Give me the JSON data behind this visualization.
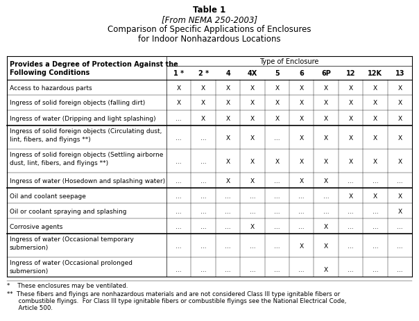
{
  "title_line1": "Table 1",
  "title_line2": "[From NEMA 250-2003]",
  "title_line3": "Comparison of Specific Applications of Enclosures",
  "title_line4": "for Indoor Nonhazardous Locations",
  "col_header_group": "Type of Enclosure",
  "col_headers": [
    "1 *",
    "2 *",
    "4",
    "4X",
    "5",
    "6",
    "6P",
    "12",
    "12K",
    "13"
  ],
  "row_header_label_line1": "Provides a Degree of Protection Against the",
  "row_header_label_line2": "Following Conditions",
  "rows": [
    {
      "label": "Access to hazardous parts",
      "label2": "",
      "values": [
        "X",
        "X",
        "X",
        "X",
        "X",
        "X",
        "X",
        "X",
        "X",
        "X"
      ],
      "group": 0,
      "tall": false
    },
    {
      "label": "Ingress of solid foreign objects (falling dirt)",
      "label2": "",
      "values": [
        "X",
        "X",
        "X",
        "X",
        "X",
        "X",
        "X",
        "X",
        "X",
        "X"
      ],
      "group": 0,
      "tall": false
    },
    {
      "label": "Ingress of water (Dripping and light splashing)",
      "label2": "",
      "values": [
        "...",
        "X",
        "X",
        "X",
        "X",
        "X",
        "X",
        "X",
        "X",
        "X"
      ],
      "group": 0,
      "tall": false
    },
    {
      "label": "Ingress of solid foreign objects (Circulating dust,",
      "label2": "lint, fibers, and flyings **)",
      "values": [
        "...",
        "...",
        "X",
        "X",
        "...",
        "X",
        "X",
        "X",
        "X",
        "X"
      ],
      "group": 1,
      "tall": true
    },
    {
      "label": "Ingress of solid foreign objects (Settling airborne",
      "label2": "dust, lint, fibers, and flyings **)",
      "values": [
        "...",
        "...",
        "X",
        "X",
        "X",
        "X",
        "X",
        "X",
        "X",
        "X"
      ],
      "group": 1,
      "tall": true
    },
    {
      "label": "Ingress of water (Hosedown and splashing water)",
      "label2": "",
      "values": [
        "...",
        "...",
        "X",
        "X",
        "...",
        "X",
        "X",
        "...",
        "...",
        "..."
      ],
      "group": 1,
      "tall": false
    },
    {
      "label": "Oil and coolant seepage",
      "label2": "",
      "values": [
        "...",
        "...",
        "...",
        "...",
        "...",
        "...",
        "...",
        "X",
        "X",
        "X"
      ],
      "group": 2,
      "tall": false
    },
    {
      "label": "Oil or coolant spraying and splashing",
      "label2": "",
      "values": [
        "...",
        "...",
        "...",
        "...",
        "...",
        "...",
        "...",
        "...",
        "...",
        "X"
      ],
      "group": 2,
      "tall": false
    },
    {
      "label": "Corrosive agents",
      "label2": "",
      "values": [
        "...",
        "...",
        "...",
        "X",
        "...",
        "...",
        "X",
        "...",
        "...",
        "..."
      ],
      "group": 2,
      "tall": false
    },
    {
      "label": "Ingress of water (Occasional temporary",
      "label2": "submersion)",
      "values": [
        "...",
        "...",
        "...",
        "...",
        "...",
        "X",
        "X",
        "...",
        "...",
        "..."
      ],
      "group": 3,
      "tall": true
    },
    {
      "label": "Ingress of water (Occasional prolonged",
      "label2": "submersion)",
      "values": [
        "...",
        "...",
        "...",
        "...",
        "...",
        "...",
        "X",
        "...",
        "...",
        "..."
      ],
      "group": 3,
      "tall": true
    }
  ],
  "footnote1": "*    These enclosures may be ventilated.",
  "footnote2a": "**  These fibers and flyings are nonhazardous materials and are not considered Class III type ignitable fibers or",
  "footnote2b": "      combustible flyings.  For Class III type ignitable fibers or combustible flyings see the National Electrical Code,",
  "footnote2c": "      Article 500.",
  "group_separators_after": [
    2,
    5,
    8
  ],
  "background_color": "#ffffff",
  "text_color": "#000000",
  "grid_color": "#000000"
}
